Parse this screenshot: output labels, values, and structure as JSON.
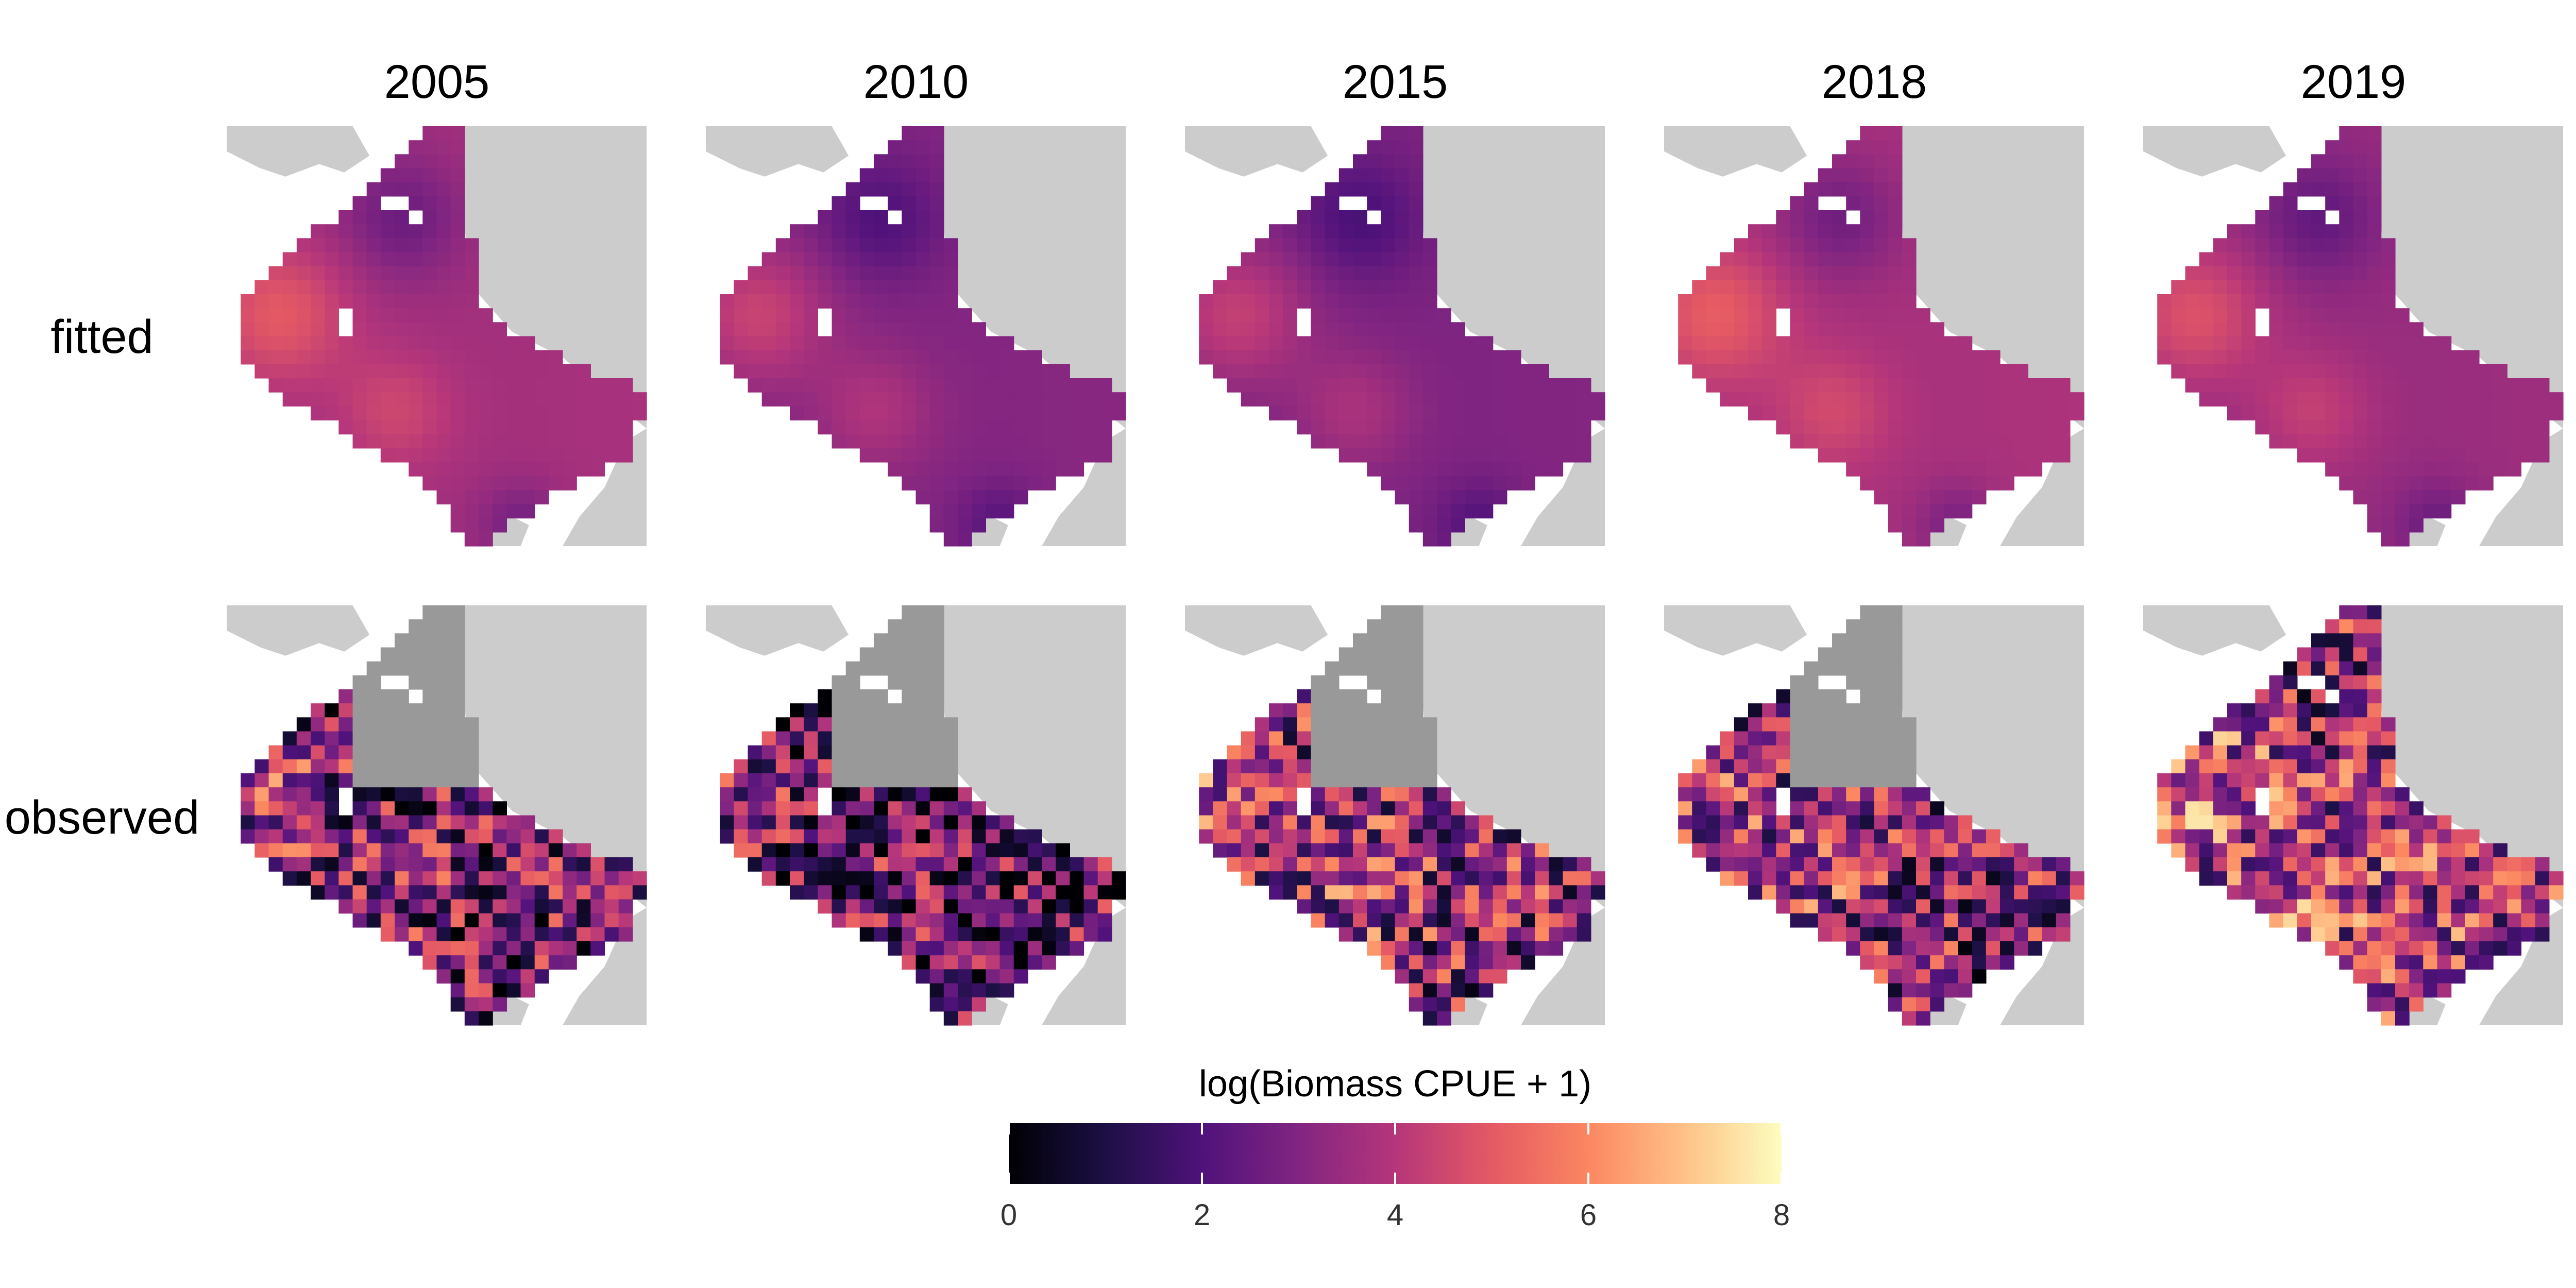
{
  "chart_data": {
    "type": "heatmap",
    "columns": [
      "2005",
      "2010",
      "2015",
      "2018",
      "2019"
    ],
    "rows": [
      "fitted",
      "observed"
    ],
    "panel_means": {
      "fitted": [
        3.6,
        3.0,
        2.9,
        3.7,
        3.4
      ],
      "observed": [
        2.6,
        2.1,
        3.4,
        3.2,
        3.9
      ]
    },
    "colorbar": {
      "title": "log(Biomass CPUE + 1)",
      "min": 0,
      "max": 8,
      "ticks": [
        "0",
        "2",
        "4",
        "6",
        "8"
      ]
    },
    "colors": {
      "land": "#cccccc",
      "unsampled": "#999999",
      "palette": [
        "#000004",
        "#1c1044",
        "#4f127b",
        "#812581",
        "#b5367a",
        "#e55964",
        "#fb8761",
        "#fec287",
        "#fcfdbf"
      ]
    }
  }
}
